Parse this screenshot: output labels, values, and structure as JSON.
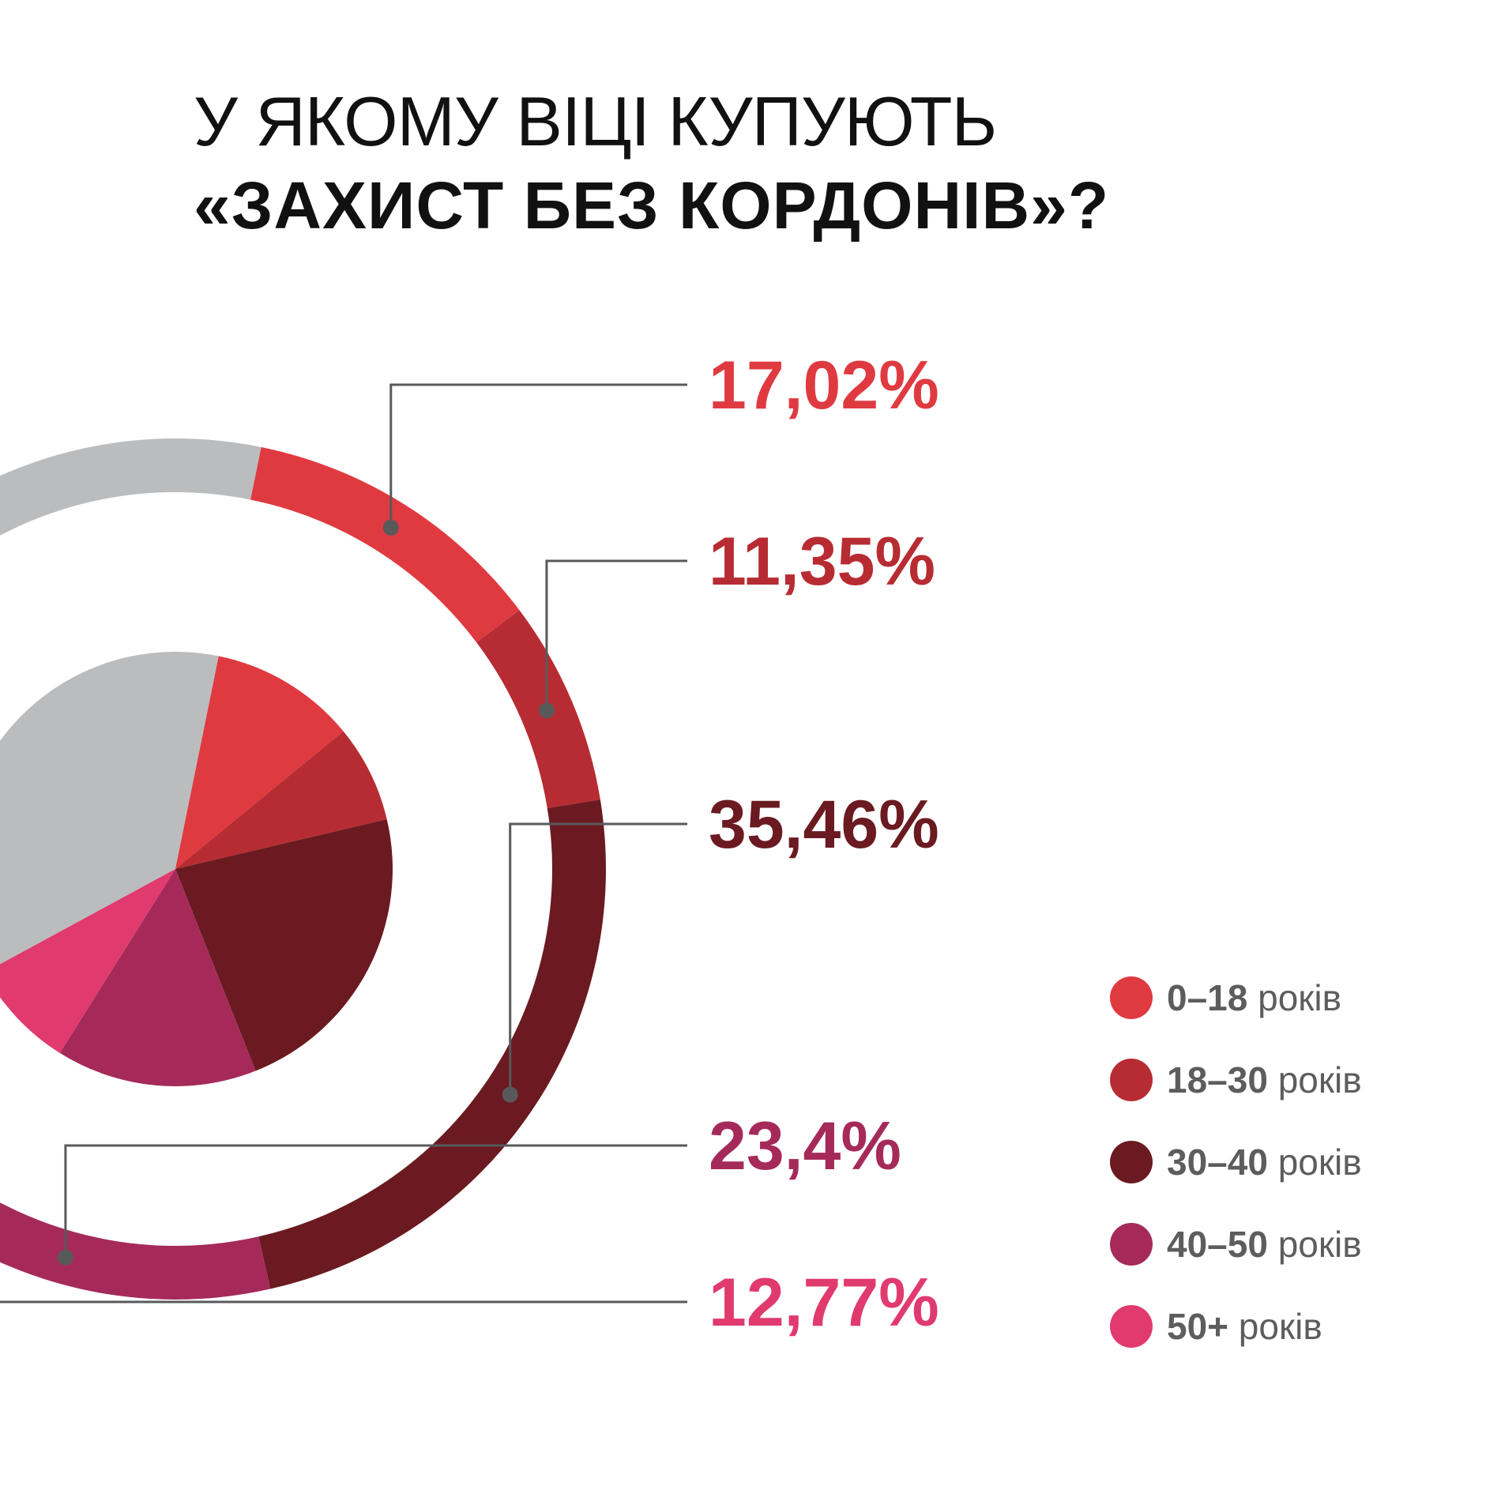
{
  "title": {
    "line1": "У ЯКОМУ ВІЦІ КУПУЮТЬ",
    "line2": "«ЗАХИСТ БЕЗ КОРДОНІВ»?"
  },
  "colors": {
    "other": "#bbbcbe",
    "leader": "#58595b"
  },
  "legend": {
    "unit": "років",
    "items": [
      {
        "range": "0–18",
        "color": "#e03a41"
      },
      {
        "range": "18–30",
        "color": "#b72c32"
      },
      {
        "range": "30–40",
        "color": "#6a1a20"
      },
      {
        "range": "40–50",
        "color": "#a52a5a"
      },
      {
        "range": "50+",
        "color": "#e03a6e"
      }
    ]
  },
  "chart_data": {
    "type": "pie",
    "categories": [
      "0–18 років",
      "18–30 років",
      "30–40 років",
      "40–50 років",
      "50+ років"
    ],
    "values": [
      17.02,
      11.35,
      35.46,
      23.4,
      12.77
    ],
    "labels": [
      "17,02%",
      "11,35%",
      "35,46%",
      "23,4%",
      "12,77%"
    ],
    "colors": [
      "#e03a41",
      "#b72c32",
      "#6a1a20",
      "#a52a5a",
      "#e03a6e"
    ],
    "title": "У ЯКОМУ ВІЦІ КУПУЮТЬ «ЗАХИСТ БЕЗ КОРДОНІВ»?",
    "legend_position": "bottom-right"
  }
}
